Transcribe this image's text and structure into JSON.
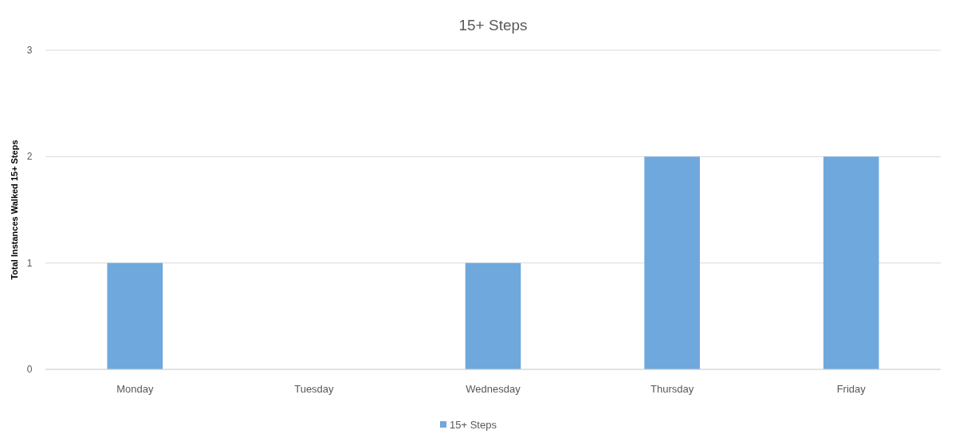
{
  "chart_data": {
    "type": "bar",
    "title": "15+ Steps",
    "ylabel": "Total Instances Walked 15+ Steps",
    "categories": [
      "Monday",
      "Tuesday",
      "Wednesday",
      "Thursday",
      "Friday"
    ],
    "series": [
      {
        "name": "15+ Steps",
        "color": "#6fa8dc",
        "values": [
          1,
          0,
          1,
          2,
          2
        ]
      }
    ],
    "ylim": [
      0,
      3
    ],
    "yticks": [
      0,
      1,
      2,
      3
    ],
    "grid": "y",
    "legend": "bottom"
  }
}
